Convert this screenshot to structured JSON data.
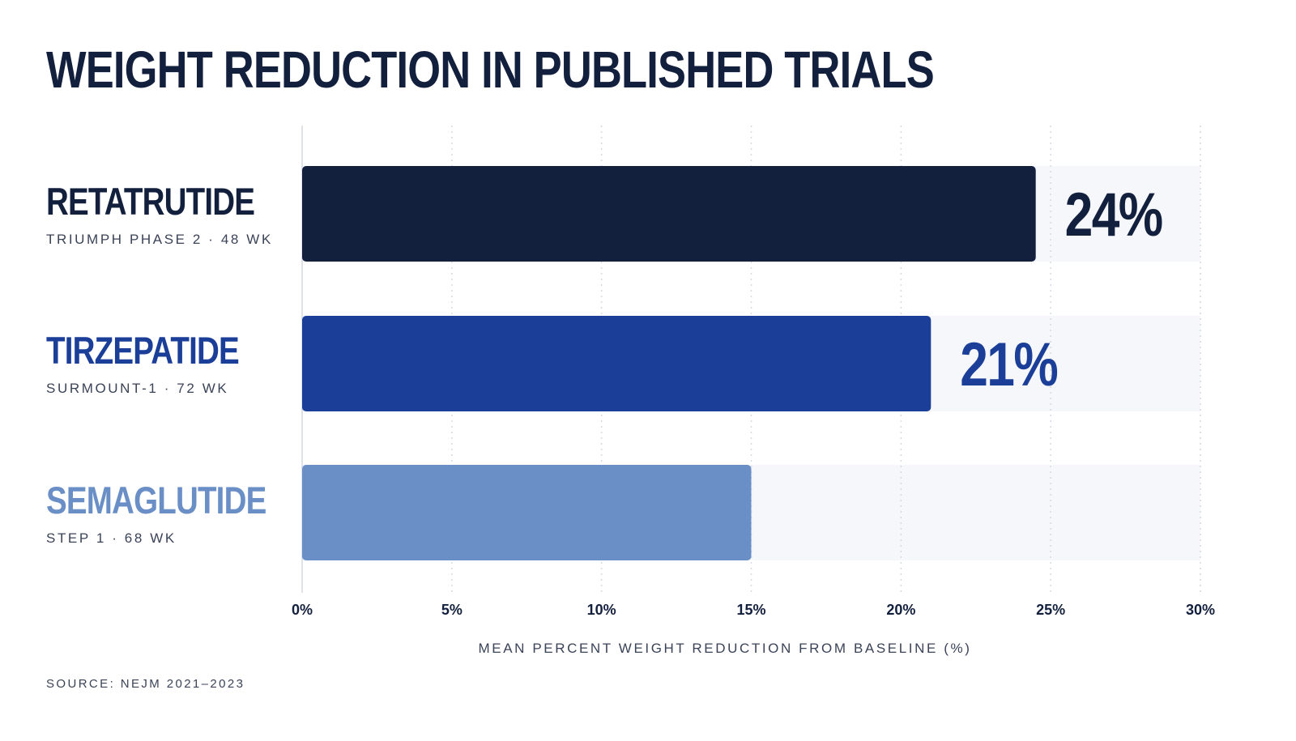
{
  "title": "WEIGHT REDUCTION IN PUBLISHED TRIALS",
  "source": "SOURCE: NEJM 2021–2023",
  "chart_data": {
    "type": "bar",
    "orientation": "horizontal",
    "title": "WEIGHT REDUCTION IN PUBLISHED TRIALS",
    "xlabel": "MEAN PERCENT WEIGHT REDUCTION FROM BASELINE (%)",
    "ylabel": "",
    "xlim": [
      0,
      30
    ],
    "xticks": [
      0,
      5,
      10,
      15,
      20,
      25,
      30
    ],
    "xtick_labels": [
      "0%",
      "5%",
      "10%",
      "15%",
      "20%",
      "25%",
      "30%"
    ],
    "grid": "vertical dotted",
    "categories": [
      "RETATRUTIDE",
      "TIRZEPATIDE",
      "SEMAGLUTIDE"
    ],
    "subtitles": [
      "TRIUMPH PHASE 2 · 48 WK",
      "SURMOUNT-1 · 72 WK",
      "STEP 1 · 68 WK"
    ],
    "values": [
      24.5,
      21,
      15
    ],
    "value_labels": [
      "24%",
      "21%",
      ""
    ],
    "colors": [
      "#13203d",
      "#1b3f98",
      "#6a8fc6"
    ]
  }
}
